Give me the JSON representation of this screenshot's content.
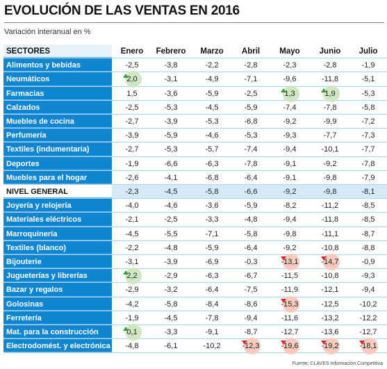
{
  "title": "EVOLUCIÓN DE LAS VENTAS EN 2016",
  "subtitle": "Variación interanual en %",
  "source": "Fuente: CLAVES Información Competitiva",
  "chart_data": {
    "type": "table",
    "header_label": "SECTORES",
    "columns": [
      "Enero",
      "Febrero",
      "Marzo",
      "Abril",
      "Mayo",
      "Junio",
      "Julio"
    ],
    "rows": [
      {
        "sector": "Alimentos y bebidas",
        "values": [
          "-2,5",
          "-3,8",
          "-2,2",
          "-2,8",
          "-2,3",
          "-2,8",
          "-1,9"
        ]
      },
      {
        "sector": "Neumáticos",
        "values": [
          "2,0",
          "-3,1",
          "-4,9",
          "-7,1",
          "-9,6",
          "-11,8",
          "-5,1"
        ],
        "marks": {
          "0": "up"
        }
      },
      {
        "sector": "Farmacias",
        "values": [
          "1,5",
          "-3,6",
          "-5,9",
          "-2,5",
          "1,3",
          "1,9",
          "-5,3"
        ],
        "marks": {
          "4": "up",
          "5": "up"
        }
      },
      {
        "sector": "Calzados",
        "values": [
          "-2,5",
          "-5,3",
          "-4,5",
          "-5,9",
          "-7,4",
          "-7,8",
          "-5,8"
        ]
      },
      {
        "sector": "Muebles de cocina",
        "values": [
          "-2,7",
          "-3,9",
          "-5,3",
          "-6,8",
          "-9,2",
          "-9,9",
          "-7,2"
        ]
      },
      {
        "sector": "Perfumería",
        "values": [
          "-3,9",
          "-5,9",
          "-4,6",
          "-5,3",
          "-9,3",
          "-7,7",
          "-7,3"
        ]
      },
      {
        "sector": " Textiles (indumentaria)",
        "values": [
          "-2,7",
          "-5,3",
          "-5,7",
          "-7,4",
          "-9,4",
          "-10,1",
          "-7,7"
        ]
      },
      {
        "sector": "Deportes",
        "values": [
          "-1,9",
          "-6,6",
          "-6,3",
          "-7,8",
          "-9,1",
          "-9,2",
          "-7,8"
        ]
      },
      {
        "sector": "Muebles para el hogar",
        "values": [
          "-2,6",
          "-4,1",
          "-6,8",
          "-6,4",
          "-9,1",
          "-9,8",
          "-7,9"
        ]
      },
      {
        "sector": "NIVEL GENERAL",
        "values": [
          "-2,3",
          "-4,5",
          "-5,8",
          "-6,6",
          "-9,2",
          "-9,8",
          "-8,1"
        ],
        "highlight": true
      },
      {
        "sector": "Joyería y relojería",
        "values": [
          "-4,0",
          "-4,6",
          "-3,6",
          "-5,9",
          "-8,2",
          "-11,2",
          "-8,5"
        ]
      },
      {
        "sector": "Materiales eléctricos",
        "values": [
          "-2,1",
          "-2,5",
          "-3,3",
          "-4,8",
          "-9,4",
          "-11,8",
          "-8,5"
        ]
      },
      {
        "sector": "Marroquinería",
        "values": [
          "-4,5",
          "-5,5",
          "-7,1",
          "-5,8",
          "-9,8",
          "-11,1",
          "-8,7"
        ]
      },
      {
        "sector": "Textiles (blanco)",
        "values": [
          "-2,2",
          "-4,8",
          "-5,9",
          "-6,4",
          "-9,2",
          "-10,8",
          "-8,8"
        ]
      },
      {
        "sector": "Bijouterie",
        "values": [
          "-3,1",
          "-3,9",
          "-6,9",
          "-0,3",
          "-13,1",
          "-14,7",
          "-0,9"
        ],
        "marks": {
          "4": "down",
          "5": "down"
        }
      },
      {
        "sector": "Jugueterías y librerías",
        "values": [
          "2,2",
          "-2,9",
          "-6,3",
          "-6,7",
          "-11,5",
          "-10,8",
          "-9,3"
        ],
        "marks": {
          "0": "up"
        }
      },
      {
        "sector": "Bazar y regalos",
        "values": [
          "-2,9",
          "-3,2",
          "-6,4",
          "-7,5",
          "-11,9",
          "-12,1",
          "-9,4"
        ]
      },
      {
        "sector": "Golosinas",
        "values": [
          "-4,2",
          "-5,8",
          "-8,4",
          "-8,6",
          "-15,3",
          "-12,5",
          "-10,2"
        ],
        "marks": {
          "4": "down"
        }
      },
      {
        "sector": "Ferretería",
        "values": [
          "-1,9",
          "-4,5",
          "-7,8",
          "-9,4",
          "-11,6",
          "-13,2",
          "-12,2"
        ]
      },
      {
        "sector": "Mat. para la construcción",
        "values": [
          "0,1",
          "-3,3",
          "-9,1",
          "-8,7",
          "-12,7",
          "-13,6",
          "-12,7"
        ],
        "marks": {
          "0": "up"
        }
      },
      {
        "sector": "Electrodomést. y electrónica",
        "values": [
          "-4,8",
          "-6,1",
          "-10,2",
          "-12,3",
          "-19,6",
          "-19,2",
          "-18,1"
        ],
        "marks": {
          "3": "down",
          "4": "down",
          "5": "down",
          "6": "down"
        }
      }
    ]
  },
  "colors": {
    "sector_label_bg": "#0f86cf",
    "highlight_row_bg": "#d6e9f8",
    "up_mark": "#3b9e33",
    "down_mark": "#d9262b"
  }
}
